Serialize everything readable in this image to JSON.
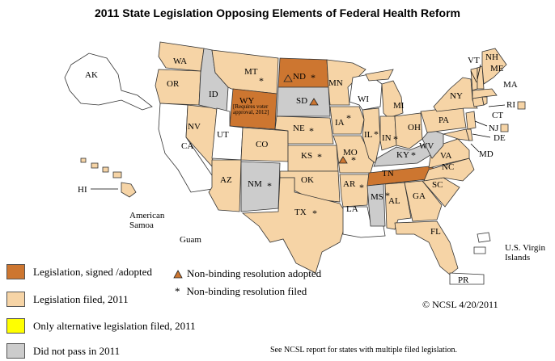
{
  "title": "2011 State Legislation Opposing Elements of Federal Health Reform",
  "colors": {
    "signed": "#cd7630",
    "filed": "#f6d4a6",
    "alternative": "#ffff00",
    "did_not_pass": "#cccccc",
    "none": "#ffffff",
    "border": "#333333",
    "triangle_fill": "#cd7630"
  },
  "states": {
    "AK": "AK",
    "HI": "HI",
    "WA": "WA",
    "OR": "OR",
    "CA": "CA",
    "NV": "NV",
    "ID": "ID",
    "MT": "MT",
    "WY": "WY",
    "wy_note": "[Requires voter approval, 2012]",
    "UT": "UT",
    "CO": "CO",
    "AZ": "AZ",
    "NM": "NM",
    "ND": "ND",
    "SD": "SD",
    "NE": "NE",
    "KS": "KS",
    "OK": "OK",
    "TX": "TX",
    "MN": "MN",
    "IA": "IA",
    "MO": "MO",
    "AR": "AR",
    "LA": "LA",
    "WI": "WI",
    "IL": "IL",
    "MI": "MI",
    "IN": "IN",
    "OH": "OH",
    "KY": "KY",
    "TN": "TN",
    "MS": "MS",
    "AL": "AL",
    "GA": "GA",
    "FL": "FL",
    "SC": "SC",
    "NC": "NC",
    "VA": "VA",
    "WV": "WV",
    "PA": "PA",
    "NY": "NY",
    "VT": "VT",
    "NH": "NH",
    "ME": "ME",
    "MA": "MA",
    "RI": "RI",
    "CT": "CT",
    "NJ": "NJ",
    "DE": "DE",
    "MD": "MD"
  },
  "territories": {
    "american_samoa": "American Samoa",
    "guam": "Guam",
    "usvi": "U.S. Virgin Islands",
    "pr": "PR"
  },
  "legend": {
    "signed": "Legislation, signed /adopted",
    "filed": "Legislation  filed,  2011",
    "alternative": "Only alternative legislation filed, 2011",
    "did_not_pass": "Did not pass in 2011",
    "triangle": "Non-binding resolution adopted",
    "star": "Non-binding resolution filed",
    "star_symbol": "*"
  },
  "copyright": "© NCSL 4/20/2011",
  "footnote": "See NCSL report for states with multiple filed legislation."
}
